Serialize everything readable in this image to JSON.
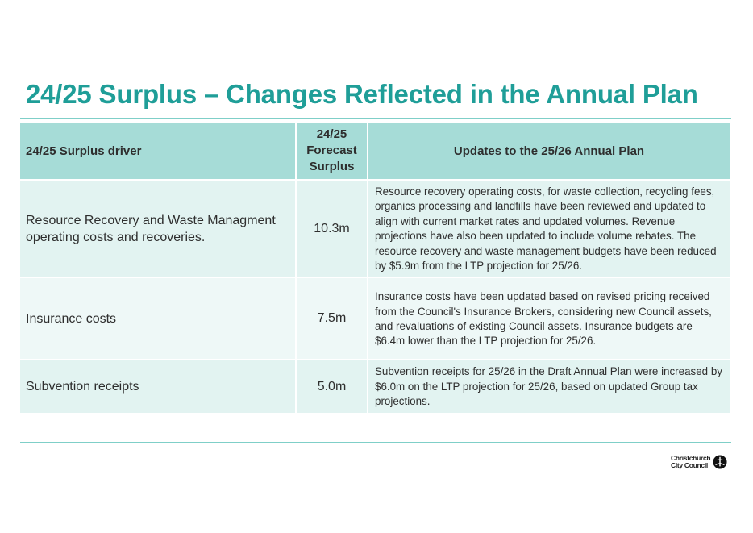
{
  "title": "24/25 Surplus – Changes Reflected in the Annual Plan",
  "table": {
    "headers": {
      "driver": "24/25 Surplus driver",
      "surplus_line1": "24/25",
      "surplus_line2": "Forecast",
      "surplus_line3": "Surplus",
      "updates": "Updates to the 25/26 Annual Plan"
    },
    "rows": [
      {
        "driver": "Resource Recovery and Waste Managment operating costs and recoveries.",
        "amount": "10.3m",
        "update": "Resource recovery operating costs, for waste collection, recycling fees, organics processing and landfills have been reviewed and updated to align with current market rates and updated volumes. Revenue projections have also been updated to include volume rebates. The resource recovery and waste management budgets have been reduced by $5.9m from the LTP projection for 25/26."
      },
      {
        "driver": "Insurance costs",
        "amount": "7.5m",
        "update": "Insurance costs have been updated based on revised pricing received from the Council's Insurance Brokers, considering new Council assets, and revaluations of existing Council assets. Insurance budgets are $6.4m lower than the LTP projection for 25/26."
      },
      {
        "driver": "Subvention receipts",
        "amount": "5.0m",
        "update": "Subvention receipts for 25/26 in the Draft Annual Plan were increased by $6.0m on the LTP projection for 25/26, based on updated Group tax projections."
      }
    ]
  },
  "logo": {
    "line1": "Christchurch",
    "line2": "City Council",
    "icon": "christchurch-logo-icon"
  },
  "colors": {
    "accent": "#1f9e98",
    "header_fill": "#a6dcd7",
    "row_fill_dark": "#e2f3f1",
    "row_fill_light": "#eef8f7"
  }
}
